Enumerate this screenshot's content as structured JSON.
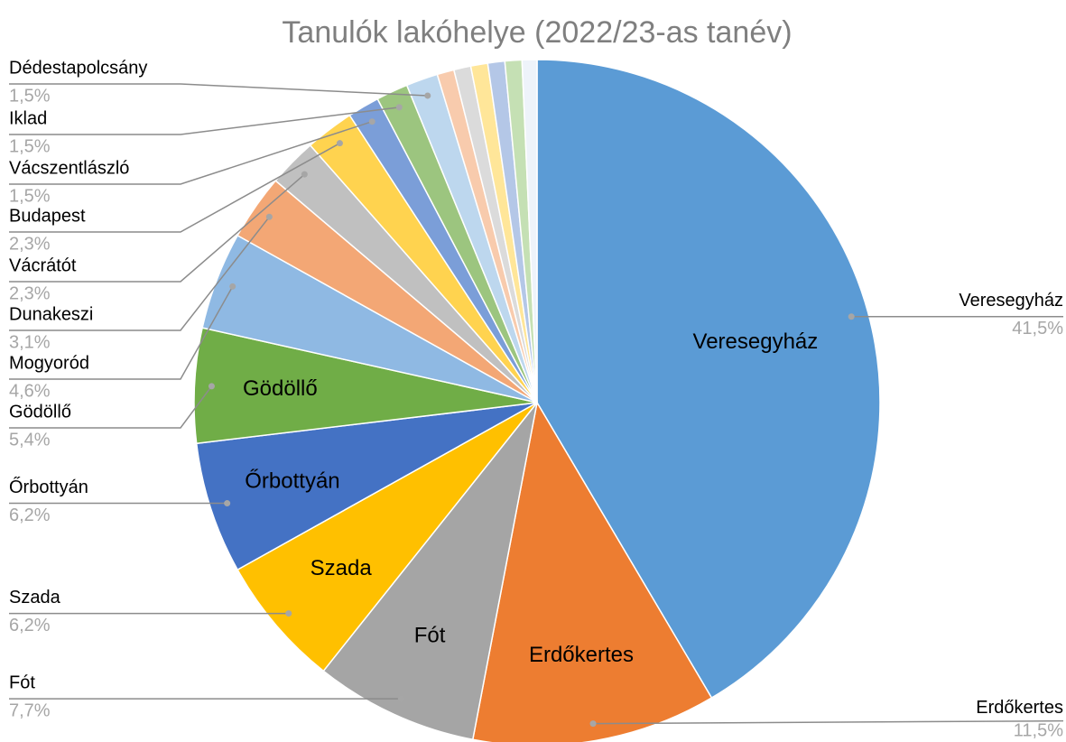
{
  "chart_data": {
    "type": "pie",
    "title": "Tanulók lakóhelye (2022/23-as tanév)",
    "categories": [
      "Veresegyház",
      "Erdőkertes",
      "Fót",
      "Szada",
      "Őrbottyán",
      "Gödöllő",
      "Mogyoród",
      "Dunakeszi",
      "Vácrátót",
      "Budapest",
      "Vácszentlászló",
      "Iklad",
      "Dédestapolcsány",
      null,
      null,
      null,
      null,
      null,
      null
    ],
    "values": [
      41.5,
      11.5,
      7.7,
      6.2,
      6.2,
      5.4,
      4.6,
      3.1,
      2.3,
      2.3,
      1.5,
      1.5,
      1.5,
      0.8,
      0.8,
      0.8,
      0.8,
      0.8,
      0.7
    ],
    "value_labels": [
      "41,5%",
      "11,5%",
      "7,7%",
      "6,2%",
      "6,2%",
      "5,4%",
      "4,6%",
      "3,1%",
      "2,3%",
      "2,3%",
      "1,5%",
      "1,5%",
      "1,5%",
      null,
      null,
      null,
      null,
      null,
      null
    ],
    "colors": [
      "#5b9bd5",
      "#ed7d31",
      "#a5a5a5",
      "#ffc000",
      "#4472c4",
      "#70ad47",
      "#8fb9e3",
      "#f3a775",
      "#c0c0c0",
      "#ffd34f",
      "#7b9ed8",
      "#9cc57f",
      "#bdd7ee",
      "#f8cbad",
      "#dbdbdb",
      "#ffe699",
      "#b4c7e7",
      "#c5e0b4",
      "#eef3fa"
    ]
  }
}
